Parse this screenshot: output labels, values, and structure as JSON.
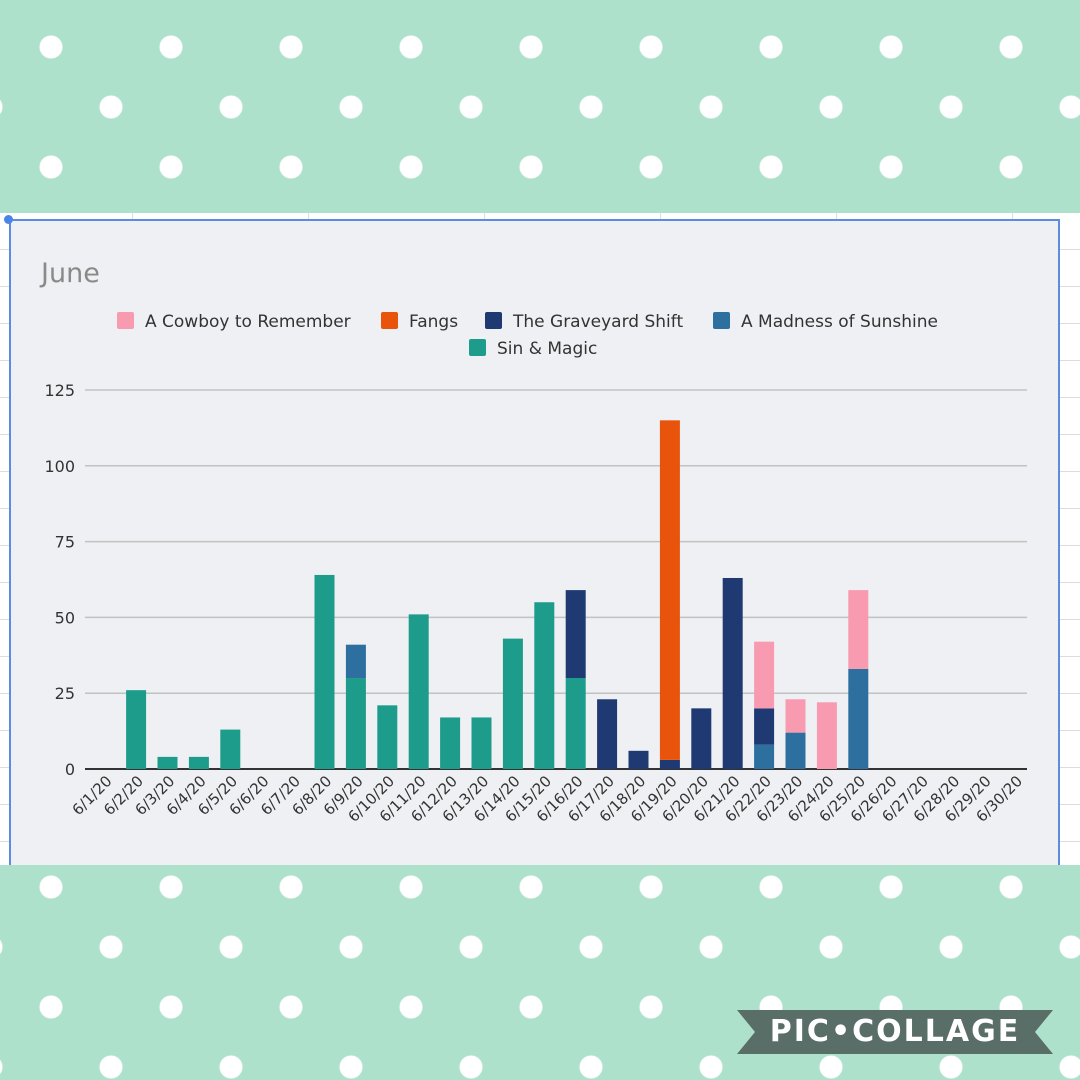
{
  "chart_data": {
    "type": "bar",
    "stacked": true,
    "title": "June",
    "legend_position": "top",
    "ylim": [
      0,
      125
    ],
    "yticks": [
      0,
      25,
      50,
      75,
      100,
      125
    ],
    "grid": true,
    "categories": [
      "6/1/20",
      "6/2/20",
      "6/3/20",
      "6/4/20",
      "6/5/20",
      "6/6/20",
      "6/7/20",
      "6/8/20",
      "6/9/20",
      "6/10/20",
      "6/11/20",
      "6/12/20",
      "6/13/20",
      "6/14/20",
      "6/15/20",
      "6/16/20",
      "6/17/20",
      "6/18/20",
      "6/19/20",
      "6/20/20",
      "6/21/20",
      "6/22/20",
      "6/23/20",
      "6/24/20",
      "6/25/20",
      "6/26/20",
      "6/27/20",
      "6/28/20",
      "6/29/20",
      "6/30/20"
    ],
    "series": [
      {
        "name": "Sin & Magic",
        "color": "#1d9c8b",
        "values": [
          0,
          26,
          4,
          4,
          13,
          0,
          0,
          64,
          30,
          21,
          51,
          17,
          17,
          43,
          55,
          30,
          0,
          0,
          0,
          0,
          0,
          0,
          0,
          0,
          0,
          0,
          0,
          0,
          0,
          0
        ]
      },
      {
        "name": "A Madness of Sunshine",
        "color": "#2d70a0",
        "values": [
          0,
          0,
          0,
          0,
          0,
          0,
          0,
          0,
          11,
          0,
          0,
          0,
          0,
          0,
          0,
          0,
          0,
          0,
          0,
          0,
          0,
          8,
          12,
          0,
          33,
          0,
          0,
          0,
          0,
          0
        ]
      },
      {
        "name": "The Graveyard Shift",
        "color": "#1f3a73",
        "values": [
          0,
          0,
          0,
          0,
          0,
          0,
          0,
          0,
          0,
          0,
          0,
          0,
          0,
          0,
          0,
          29,
          23,
          6,
          3,
          20,
          63,
          12,
          0,
          0,
          0,
          0,
          0,
          0,
          0,
          0
        ]
      },
      {
        "name": "Fangs",
        "color": "#e9540c",
        "values": [
          0,
          0,
          0,
          0,
          0,
          0,
          0,
          0,
          0,
          0,
          0,
          0,
          0,
          0,
          0,
          0,
          0,
          0,
          112,
          0,
          0,
          0,
          0,
          0,
          0,
          0,
          0,
          0,
          0,
          0
        ]
      },
      {
        "name": "A Cowboy to Remember",
        "color": "#f89bb1",
        "values": [
          0,
          0,
          0,
          0,
          0,
          0,
          0,
          0,
          0,
          0,
          0,
          0,
          0,
          0,
          0,
          0,
          0,
          0,
          0,
          0,
          0,
          22,
          11,
          22,
          26,
          0,
          0,
          0,
          0,
          0
        ]
      }
    ],
    "legend_order": [
      "A Cowboy to Remember",
      "Fangs",
      "The Graveyard Shift",
      "A Madness of Sunshine",
      "Sin & Magic"
    ]
  },
  "watermark": {
    "text": "PIC•COLLAGE",
    "color": "#5a6e68"
  }
}
